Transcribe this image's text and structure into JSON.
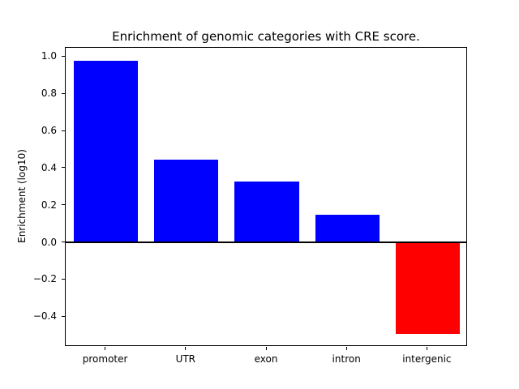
{
  "chart_data": {
    "type": "bar",
    "title": "Enrichment of genomic categories with CRE score.",
    "xlabel": "",
    "ylabel": "Enrichment (log10)",
    "categories": [
      "promoter",
      "UTR",
      "exon",
      "intron",
      "intergenic"
    ],
    "values": [
      0.98,
      0.45,
      0.33,
      0.15,
      -0.49
    ],
    "bar_colors": [
      "#0000ff",
      "#0000ff",
      "#0000ff",
      "#0000ff",
      "#ff0000"
    ],
    "ylim": [
      -0.56,
      1.05
    ],
    "yticks": [
      -0.4,
      -0.2,
      0.0,
      0.2,
      0.4,
      0.6,
      0.8,
      1.0
    ],
    "grid": false,
    "legend": "none",
    "zero_line": true,
    "colors": {
      "positive_bar": "#0000ff",
      "negative_bar": "#ff0000",
      "axis": "#000000",
      "background": "#ffffff"
    }
  }
}
